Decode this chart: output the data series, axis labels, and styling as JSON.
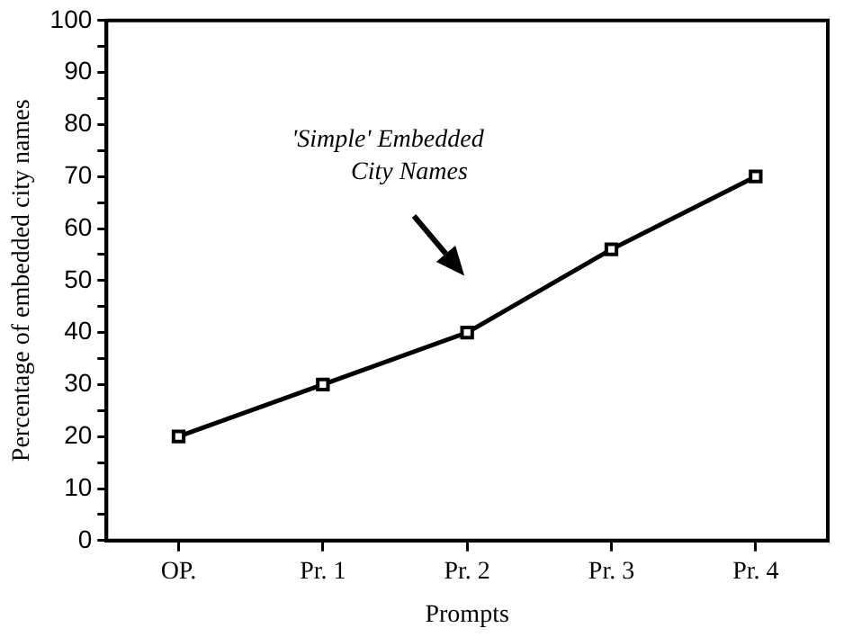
{
  "chart_data": {
    "type": "line",
    "xlabel": "Prompts",
    "ylabel": "Percentage of embedded city names",
    "categories": [
      "OP.",
      "Pr. 1",
      "Pr. 2",
      "Pr. 3",
      "Pr. 4"
    ],
    "series": [
      {
        "color": "#000000",
        "values": [
          20,
          30,
          40,
          56,
          70
        ]
      }
    ],
    "ylim": [
      0,
      100
    ],
    "yticks": [
      0,
      {
        "value": 5,
        "label": null
      },
      10,
      {
        "value": 15,
        "label": null
      },
      20,
      {
        "value": 25,
        "label": null
      },
      30,
      {
        "value": 35,
        "label": null
      },
      40,
      {
        "value": 45,
        "label": null
      },
      50,
      {
        "value": 55,
        "label": null
      },
      60,
      {
        "value": 65,
        "label": null
      },
      70,
      {
        "value": 75,
        "label": null
      },
      80,
      {
        "value": 85,
        "label": null
      },
      90,
      {
        "value": 95,
        "label": null
      },
      100
    ],
    "annotations": [
      "'Simple' Embedded\nCity Names"
    ],
    "grid": false,
    "legend": false,
    "marker": "square",
    "line_style": "solid"
  }
}
